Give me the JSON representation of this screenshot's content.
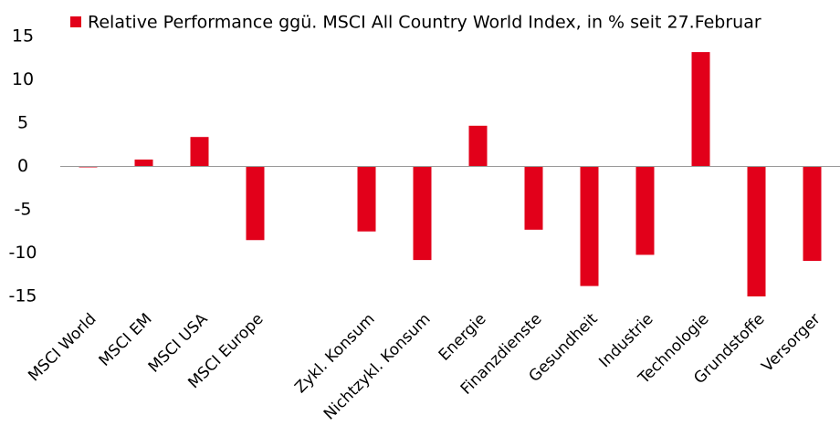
{
  "chart_data": {
    "type": "bar",
    "categories": [
      "MSCI World",
      "MSCI EM",
      "MSCI USA",
      "MSCI Europe",
      null,
      "Zykl. Konsum",
      "Nichtzykl. Konsum",
      "Energie",
      "Finanzdienste",
      "Gesundheit",
      "Industrie",
      "Technologie",
      "Grundstoffe",
      "Versorger"
    ],
    "series": [
      {
        "name": "Relative Performance ggü. MSCI All Country World Index, in % seit 27.Februar",
        "color": "#e2001a",
        "values": [
          -0.1,
          0.8,
          3.4,
          -8.5,
          null,
          -7.5,
          -10.8,
          4.7,
          -7.3,
          -13.8,
          -10.2,
          13.2,
          -15.0,
          -10.9
        ]
      }
    ],
    "ylim": [
      -15,
      15
    ],
    "yticks": [
      15,
      10,
      5,
      0,
      -5,
      -10,
      -15
    ],
    "grid": false,
    "legend": "top"
  }
}
